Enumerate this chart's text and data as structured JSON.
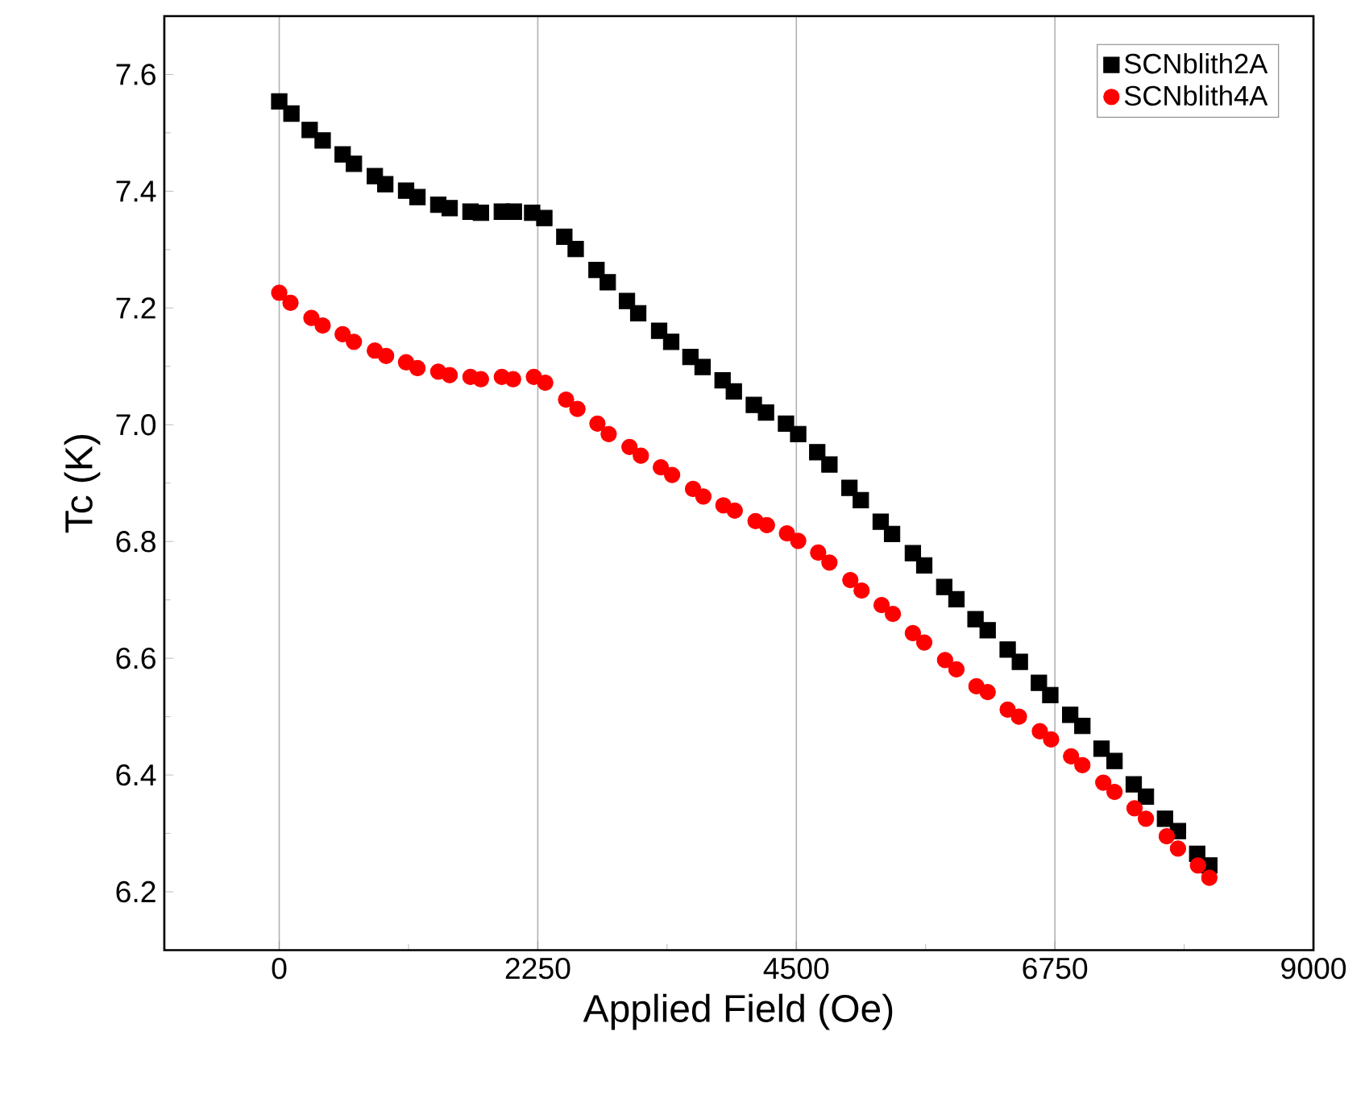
{
  "chart_data": {
    "type": "scatter",
    "xlabel": "Applied Field (Oe)",
    "ylabel": "Tc (K)",
    "xlim": [
      -1000,
      9000
    ],
    "xticks": [
      0,
      2250,
      4500,
      6750,
      9000
    ],
    "ylim": [
      6.1,
      7.7
    ],
    "yticks": [
      6.2,
      6.4,
      6.6,
      6.8,
      {
        "value": 7.0,
        "label": "7.0"
      },
      7.2,
      7.4,
      7.6
    ],
    "grid": "x",
    "legend": "top right",
    "series": [
      {
        "name": "SCNblith2A",
        "color": "#000000",
        "marker": "square",
        "x": [
          0,
          106,
          265,
          378,
          552,
          650,
          832,
          923,
          1104,
          1203,
          1384,
          1483,
          1664,
          1755,
          1937,
          2042,
          2201,
          2307,
          2481,
          2580,
          2761,
          2859,
          3026,
          3124,
          3306,
          3411,
          3578,
          3684,
          3858,
          3956,
          4130,
          4236,
          4410,
          4516,
          4682,
          4788,
          4962,
          5061,
          5234,
          5333,
          5514,
          5613,
          5787,
          5893,
          6059,
          6165,
          6339,
          6445,
          6611,
          6710,
          6883,
          6989,
          7156,
          7269,
          7436,
          7542,
          7708,
          7821,
          7988,
          8094
        ],
        "values": [
          7.554,
          7.533,
          7.505,
          7.487,
          7.463,
          7.447,
          7.426,
          7.412,
          7.401,
          7.39,
          7.377,
          7.371,
          7.365,
          7.363,
          7.365,
          7.365,
          7.363,
          7.354,
          7.322,
          7.301,
          7.265,
          7.244,
          7.212,
          7.191,
          7.161,
          7.142,
          7.116,
          7.099,
          7.076,
          7.057,
          7.034,
          7.021,
          7.002,
          6.984,
          6.953,
          6.932,
          6.892,
          6.871,
          6.834,
          6.813,
          6.78,
          6.759,
          6.722,
          6.701,
          6.667,
          6.648,
          6.615,
          6.594,
          6.558,
          6.537,
          6.503,
          6.484,
          6.445,
          6.424,
          6.384,
          6.363,
          6.325,
          6.304,
          6.265,
          6.245
        ]
      },
      {
        "name": "SCNblith4A",
        "color": "#ff0000",
        "marker": "circle",
        "x": [
          0,
          98,
          280,
          378,
          552,
          650,
          832,
          930,
          1104,
          1203,
          1384,
          1483,
          1664,
          1755,
          1937,
          2035,
          2216,
          2315,
          2496,
          2595,
          2769,
          2867,
          3048,
          3147,
          3321,
          3419,
          3601,
          3691,
          3865,
          3964,
          4145,
          4244,
          4418,
          4516,
          4690,
          4788,
          4970,
          5068,
          5242,
          5340,
          5514,
          5613,
          5794,
          5893,
          6067,
          6165,
          6339,
          6437,
          6619,
          6717,
          6891,
          6989,
          7171,
          7269,
          7443,
          7542,
          7723,
          7821,
          7995,
          8094
        ],
        "values": [
          7.226,
          7.209,
          7.183,
          7.17,
          7.155,
          7.142,
          7.127,
          7.118,
          7.107,
          7.097,
          7.091,
          7.085,
          7.082,
          7.078,
          7.082,
          7.078,
          7.082,
          7.072,
          7.043,
          7.027,
          7.002,
          6.984,
          6.962,
          6.947,
          6.927,
          6.914,
          6.89,
          6.877,
          6.862,
          6.853,
          6.835,
          6.828,
          6.814,
          6.801,
          6.781,
          6.764,
          6.734,
          6.716,
          6.691,
          6.676,
          6.643,
          6.627,
          6.597,
          6.581,
          6.552,
          6.542,
          6.512,
          6.5,
          6.475,
          6.461,
          6.432,
          6.417,
          6.387,
          6.371,
          6.343,
          6.325,
          6.295,
          6.274,
          6.245,
          6.224
        ]
      }
    ]
  }
}
